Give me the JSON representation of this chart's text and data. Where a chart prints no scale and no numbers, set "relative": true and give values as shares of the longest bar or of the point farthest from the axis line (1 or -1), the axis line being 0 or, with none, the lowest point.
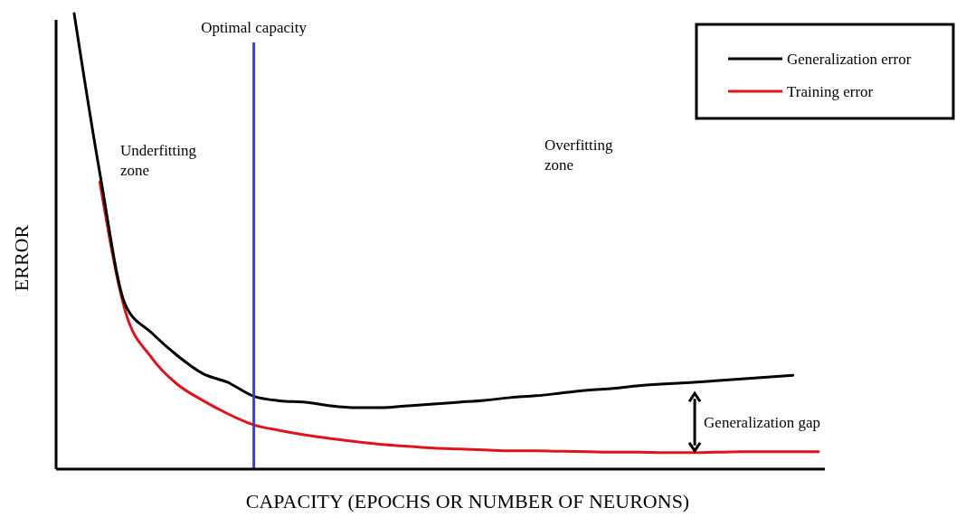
{
  "chart_data": {
    "type": "line",
    "relative": true,
    "xlabel": "CAPACITY (EPOCHS OR NUMBER OF NEURONS)",
    "ylabel": "ERROR",
    "legend": "top right",
    "marker": "none",
    "line_style": "solid",
    "categories": [
      null,
      null,
      null,
      null,
      null,
      null,
      null,
      null,
      null,
      null,
      null,
      null,
      null,
      null,
      null,
      null,
      null,
      null,
      null,
      null,
      null,
      null,
      null,
      null,
      null,
      null,
      null,
      null,
      null,
      null
    ],
    "series": [
      {
        "name": "Generalization error",
        "color": "#000000",
        "values": [
          1.0,
          0.65,
          0.36,
          0.3,
          0.25,
          0.21,
          0.19,
          0.16,
          0.15,
          0.147,
          0.139,
          0.135,
          0.135,
          0.139,
          0.143,
          0.147,
          0.151,
          0.157,
          0.161,
          0.167,
          0.173,
          0.177,
          0.183,
          0.187,
          0.19,
          0.194,
          0.198,
          0.202,
          0.206,
          null
        ]
      },
      {
        "name": "Training error",
        "color": "#e0141e",
        "values": [
          null,
          0.63,
          0.345,
          0.246,
          0.187,
          0.151,
          0.121,
          0.097,
          0.085,
          0.075,
          0.067,
          0.06,
          0.054,
          0.05,
          0.046,
          0.044,
          0.042,
          0.04,
          0.04,
          0.039,
          0.038,
          0.037,
          0.037,
          0.036,
          0.036,
          0.037,
          0.038,
          0.038,
          0.038,
          0.038
        ]
      }
    ],
    "annotations": [
      "Underfitting\nzone",
      "Overfitting\nzone",
      "Generalization gap",
      "Optimal capacity"
    ]
  }
}
